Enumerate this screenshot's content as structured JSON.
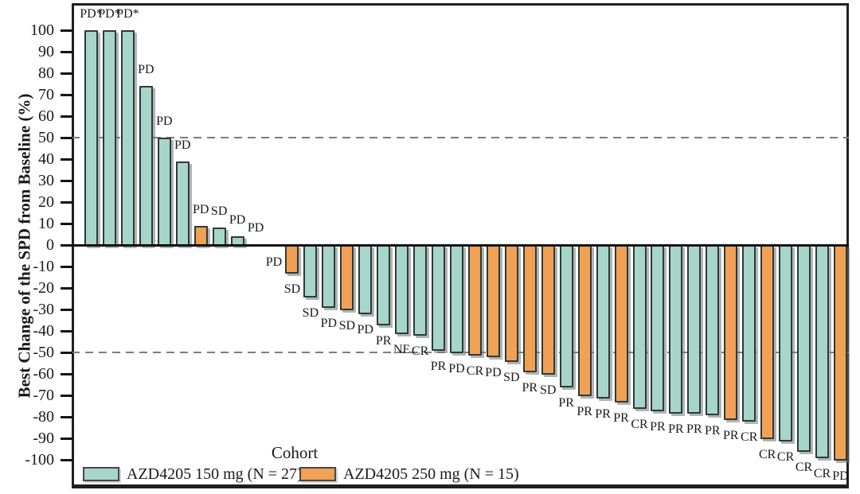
{
  "chart_data": {
    "type": "bar",
    "subtype": "waterfall",
    "title": "",
    "xlabel": "",
    "ylabel": "Best Change of the SPD from Baseline (%)",
    "ylim": [
      -100,
      100
    ],
    "ytick_step": 10,
    "ytick_labels": [
      "100",
      "90",
      "80",
      "70",
      "60",
      "50",
      "40",
      "30",
      "20",
      "10",
      "0",
      "-10",
      "-20",
      "-30",
      "-40",
      "-50",
      "-60",
      "-70",
      "-80",
      "-90",
      "-100"
    ],
    "reference_lines": [
      50,
      -50
    ],
    "grid": "off",
    "legend_position": "bottom-inside",
    "legend": {
      "title": "Cohort",
      "entries": [
        {
          "label": "AZD4205 150 mg (N = 27)",
          "color": "#a7d5c9"
        },
        {
          "label": "AZD4205 250 mg (N = 15)",
          "color": "#f0a155"
        }
      ]
    },
    "bars": [
      {
        "value": 100,
        "response": "PD*",
        "cohort": "150"
      },
      {
        "value": 100,
        "response": "PD*",
        "cohort": "150"
      },
      {
        "value": 100,
        "response": "PD*",
        "cohort": "150"
      },
      {
        "value": 74,
        "response": "PD",
        "cohort": "150"
      },
      {
        "value": 50,
        "response": "PD",
        "cohort": "150"
      },
      {
        "value": 39,
        "response": "PD",
        "cohort": "150"
      },
      {
        "value": 9,
        "response": "PD",
        "cohort": "250"
      },
      {
        "value": 8,
        "response": "SD",
        "cohort": "150"
      },
      {
        "value": 4,
        "response": "PD",
        "cohort": "150"
      },
      {
        "value": 0.5,
        "response": "PD",
        "cohort": "250"
      },
      {
        "value": -0.5,
        "response": "PD",
        "cohort": "250"
      },
      {
        "value": -13,
        "response": "SD",
        "cohort": "250"
      },
      {
        "value": -24,
        "response": "SD",
        "cohort": "150"
      },
      {
        "value": -29,
        "response": "PD",
        "cohort": "150"
      },
      {
        "value": -30,
        "response": "SD",
        "cohort": "250"
      },
      {
        "value": -32,
        "response": "PD",
        "cohort": "150"
      },
      {
        "value": -37,
        "response": "PR",
        "cohort": "150"
      },
      {
        "value": -41,
        "response": "NE",
        "cohort": "150"
      },
      {
        "value": -42,
        "response": "CR",
        "cohort": "150"
      },
      {
        "value": -49,
        "response": "PR",
        "cohort": "150"
      },
      {
        "value": -50,
        "response": "PD",
        "cohort": "150"
      },
      {
        "value": -51,
        "response": "CR",
        "cohort": "250"
      },
      {
        "value": -52,
        "response": "PD",
        "cohort": "250"
      },
      {
        "value": -54,
        "response": "SD",
        "cohort": "250"
      },
      {
        "value": -59,
        "response": "PR",
        "cohort": "250"
      },
      {
        "value": -60,
        "response": "SD",
        "cohort": "250"
      },
      {
        "value": -66,
        "response": "PR",
        "cohort": "150"
      },
      {
        "value": -70,
        "response": "PR",
        "cohort": "250"
      },
      {
        "value": -71,
        "response": "PR",
        "cohort": "150"
      },
      {
        "value": -73,
        "response": "PR",
        "cohort": "250"
      },
      {
        "value": -76,
        "response": "CR",
        "cohort": "150"
      },
      {
        "value": -77,
        "response": "PR",
        "cohort": "150"
      },
      {
        "value": -78,
        "response": "PR",
        "cohort": "150"
      },
      {
        "value": -78,
        "response": "PR",
        "cohort": "150"
      },
      {
        "value": -79,
        "response": "PR",
        "cohort": "150"
      },
      {
        "value": -81,
        "response": "PR",
        "cohort": "250"
      },
      {
        "value": -82,
        "response": "CR",
        "cohort": "150"
      },
      {
        "value": -90,
        "response": "CR",
        "cohort": "250"
      },
      {
        "value": -91,
        "response": "CR",
        "cohort": "150"
      },
      {
        "value": -96,
        "response": "CR",
        "cohort": "150"
      },
      {
        "value": -99,
        "response": "CR",
        "cohort": "150"
      },
      {
        "value": -100,
        "response": "PD",
        "cohort": "250"
      }
    ]
  },
  "colors": {
    "cohort_150": "#a7d5c9",
    "cohort_250": "#f0a155",
    "bar_border": "#2e3a37",
    "axis": "#121212",
    "reference_line": "#7d7d7d"
  }
}
